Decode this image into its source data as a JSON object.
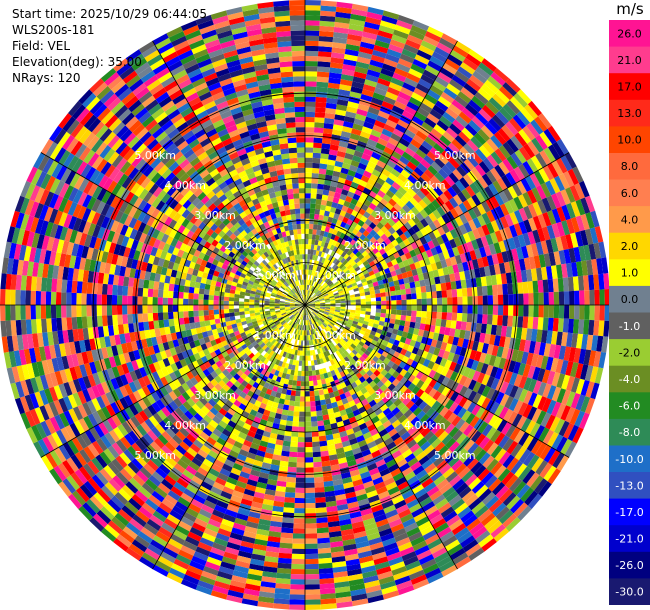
{
  "info": {
    "start_time": "Start time: 2025/10/29 06:44:05",
    "station": "WLS200s-181",
    "field": "Field: VEL",
    "elevation": "Elevation(deg): 35.00",
    "nrays": "NRays: 120"
  },
  "chart_data": {
    "type": "heatmap",
    "projection": "polar-ppi",
    "title": "",
    "nrays": 120,
    "max_range_km": 7.2,
    "range_ring_labels": [
      "1.00km",
      "2.00km",
      "3.00km",
      "4.00km",
      "5.00km"
    ],
    "range_ring_km": [
      1,
      2,
      3,
      4,
      5
    ],
    "grid": true,
    "colorbar": {
      "unit": "m/s",
      "placement": "right",
      "ticks": [
        "26.0",
        "21.0",
        "17.0",
        "13.0",
        "10.0",
        "8.0",
        "6.0",
        "4.0",
        "2.0",
        "1.0",
        "0.0",
        "-1.0",
        "-2.0",
        "-4.0",
        "-6.0",
        "-8.0",
        "-10.0",
        "-13.0",
        "-17.0",
        "-21.0",
        "-26.0",
        "-30.0"
      ],
      "colors": [
        "#ff1493",
        "#ff3c8e",
        "#ff0000",
        "#ff2a1a",
        "#ff4500",
        "#ff6a3d",
        "#ff7f50",
        "#ff9a4a",
        "#ffd700",
        "#ffff00",
        "#708090",
        "#606060",
        "#9acd32",
        "#6b8e23",
        "#228b22",
        "#2e8b57",
        "#1e6fc8",
        "#3050c0",
        "#0000ff",
        "#0000cd",
        "#000080",
        "#191970"
      ]
    },
    "pattern_note_values": {
      "near_field_dominant": [
        "1.0",
        "2.0",
        "0.0",
        "-1.0",
        "-2.0"
      ],
      "far_field_mixture": "all"
    }
  }
}
